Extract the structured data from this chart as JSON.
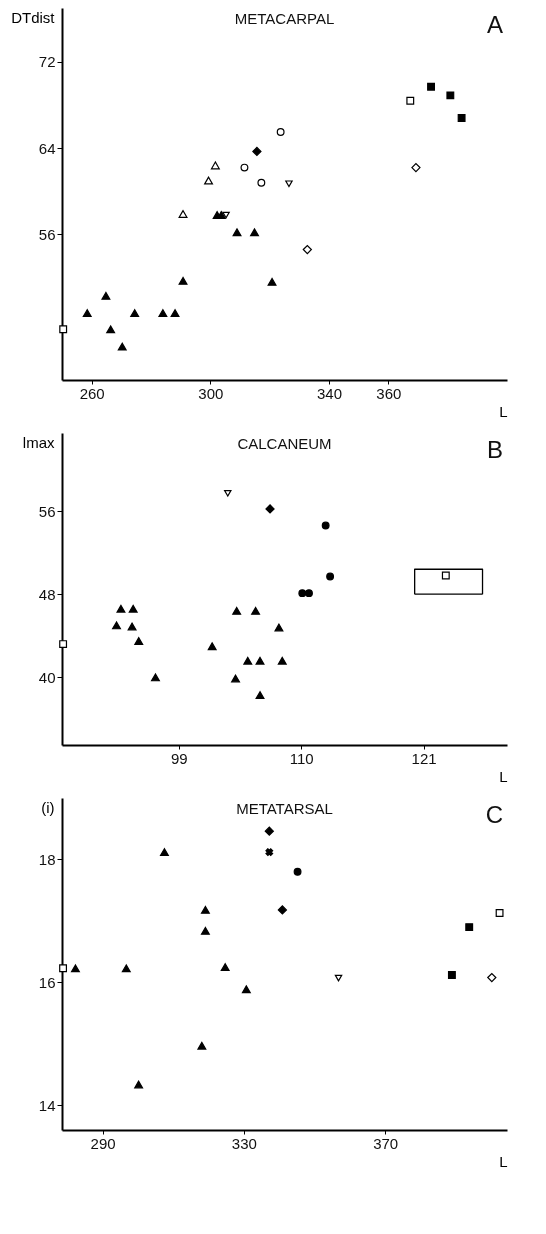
{
  "chart_data": [
    {
      "type": "scatter",
      "title": "METACARPAL",
      "annotations": [
        "A"
      ],
      "xlabel": "L",
      "ylabel": "DTdist",
      "xlim": [
        250,
        400
      ],
      "ylim": [
        42.5,
        77
      ],
      "xticks": [
        260,
        300,
        340,
        360
      ],
      "yticks": [
        56,
        64,
        72
      ],
      "series": [
        {
          "marker": "triangle",
          "color": "#000000",
          "x": [
            258.5,
            264.8,
            266.4,
            270.3,
            274.5,
            284.0,
            288.1,
            290.8,
            302.3,
            303.7,
            309.0,
            314.9,
            320.8
          ],
          "values": [
            48.7,
            50.3,
            47.2,
            45.6,
            48.7,
            48.7,
            48.7,
            51.7,
            57.8,
            57.8,
            56.2,
            56.2,
            51.6
          ]
        },
        {
          "marker": "triangle",
          "color": "#ffffff",
          "x": [
            290.8,
            299.4,
            301.7
          ],
          "values": [
            57.9,
            61.0,
            62.4
          ]
        },
        {
          "marker": "triangle-down",
          "color": "#ffffff",
          "x": [
            305.3,
            326.5
          ],
          "values": [
            57.8,
            60.7
          ]
        },
        {
          "marker": "circle",
          "color": "#ffffff",
          "x": [
            311.5,
            317.2,
            323.7
          ],
          "values": [
            62.2,
            60.8,
            65.5
          ]
        },
        {
          "marker": "diamond",
          "color": "#000000",
          "x": [
            315.7
          ],
          "values": [
            63.7
          ]
        },
        {
          "marker": "diamond",
          "color": "#ffffff",
          "x": [
            332.7,
            369.3
          ],
          "values": [
            54.6,
            62.2
          ]
        },
        {
          "marker": "square",
          "color": "#ffffff",
          "x": [
            250.4,
            367.4
          ],
          "values": [
            47.2,
            68.4
          ]
        },
        {
          "marker": "square",
          "color": "#000000",
          "x": [
            374.4,
            380.9,
            384.7
          ],
          "values": [
            69.7,
            68.9,
            66.8
          ]
        }
      ]
    },
    {
      "type": "scatter",
      "title": "CALCANEUM",
      "annotations": [
        "B"
      ],
      "xlabel": "L",
      "ylabel": "lmax",
      "xlim": [
        88.5,
        128.5
      ],
      "ylim": [
        33.5,
        63.5
      ],
      "xticks": [
        99,
        110,
        121
      ],
      "yticks": [
        40,
        48,
        56
      ],
      "series": [
        {
          "marker": "triangle",
          "color": "#000000",
          "x": [
            93.8,
            94.9,
            93.4,
            94.8,
            95.4,
            96.9,
            102.0,
            104.2,
            105.9,
            108.0,
            105.2,
            106.3,
            108.3,
            104.1,
            106.3
          ],
          "values": [
            46.6,
            46.6,
            45.0,
            44.9,
            43.5,
            40.0,
            43.0,
            46.4,
            46.4,
            44.8,
            41.6,
            41.6,
            41.6,
            39.9,
            38.3
          ]
        },
        {
          "marker": "triangle-down",
          "color": "#ffffff",
          "x": [
            103.4
          ],
          "values": [
            57.7
          ]
        },
        {
          "marker": "diamond",
          "color": "#000000",
          "x": [
            107.2
          ],
          "values": [
            56.2
          ]
        },
        {
          "marker": "circle",
          "color": "#000000",
          "x": [
            112.2,
            112.6,
            110.1,
            110.7
          ],
          "values": [
            54.6,
            49.7,
            48.1,
            48.1
          ]
        },
        {
          "marker": "square",
          "color": "#ffffff",
          "x": [
            88.6,
            123.0
          ],
          "values": [
            43.2,
            49.8
          ]
        },
        {
          "type": "line",
          "marker": "none",
          "color": "#000000",
          "x": [
            120.2,
            120.2,
            126.3,
            126.3
          ],
          "values": [
            48.0,
            50.4,
            50.4,
            48.0
          ]
        },
        {
          "type": "line",
          "marker": "none",
          "color": "#000000",
          "x": [
            120.2,
            126.3
          ],
          "values": [
            48.0,
            48.0
          ]
        }
      ]
    },
    {
      "type": "scatter",
      "title": "METATARSAL",
      "annotations": [
        "C"
      ],
      "xlabel": "L",
      "ylabel": "(i)",
      "xlim": [
        278.5,
        404.5
      ],
      "ylim": [
        13.6,
        19
      ],
      "xticks": [
        290,
        330,
        370
      ],
      "yticks": [
        14,
        16,
        18
      ],
      "series": [
        {
          "marker": "triangle",
          "color": "#000000",
          "x": [
            307.5,
            319.1,
            319.1,
            282.3,
            296.7,
            324.7,
            330.7,
            318.1,
            300.2
          ],
          "values": [
            18.12,
            17.18,
            16.84,
            16.23,
            16.23,
            16.25,
            15.89,
            14.97,
            14.34
          ]
        },
        {
          "marker": "diamond",
          "color": "#000000",
          "x": [
            337.2,
            340.9
          ],
          "values": [
            18.46,
            17.18
          ]
        },
        {
          "marker": "cross",
          "color": "#000000",
          "x": [
            337.2
          ],
          "values": [
            18.12
          ]
        },
        {
          "marker": "circle",
          "color": "#000000",
          "x": [
            345.2
          ],
          "values": [
            17.8
          ]
        },
        {
          "marker": "square",
          "color": "#ffffff",
          "x": [
            278.8,
            402.4
          ],
          "values": [
            16.23,
            17.13
          ]
        },
        {
          "marker": "square",
          "color": "#000000",
          "x": [
            393.8,
            388.9
          ],
          "values": [
            16.9,
            16.12
          ]
        },
        {
          "marker": "triangle-down",
          "color": "#ffffff",
          "x": [
            356.8
          ],
          "values": [
            16.07
          ]
        },
        {
          "marker": "diamond",
          "color": "#ffffff",
          "x": [
            400.2
          ],
          "values": [
            16.08
          ]
        }
      ]
    }
  ]
}
